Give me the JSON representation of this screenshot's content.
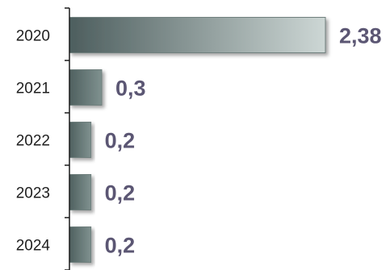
{
  "chart_data": {
    "type": "bar",
    "orientation": "horizontal",
    "categories": [
      "2020",
      "2021",
      "2022",
      "2023",
      "2024"
    ],
    "values": [
      2.38,
      0.3,
      0.2,
      0.2,
      0.2
    ],
    "value_labels": [
      "2,38",
      "0,3",
      "0,2",
      "0,2",
      "0,2"
    ],
    "title": "",
    "xlabel": "",
    "ylabel": "",
    "xlim": [
      0,
      2.38
    ],
    "grid": false,
    "legend": "none"
  },
  "colors": {
    "bar_dark": "#4d5e5e",
    "bar_light": "#cdd7d5",
    "value_text": "#5b5673",
    "axis": "#1a1a1a",
    "category_text": "#1f1f1f"
  }
}
